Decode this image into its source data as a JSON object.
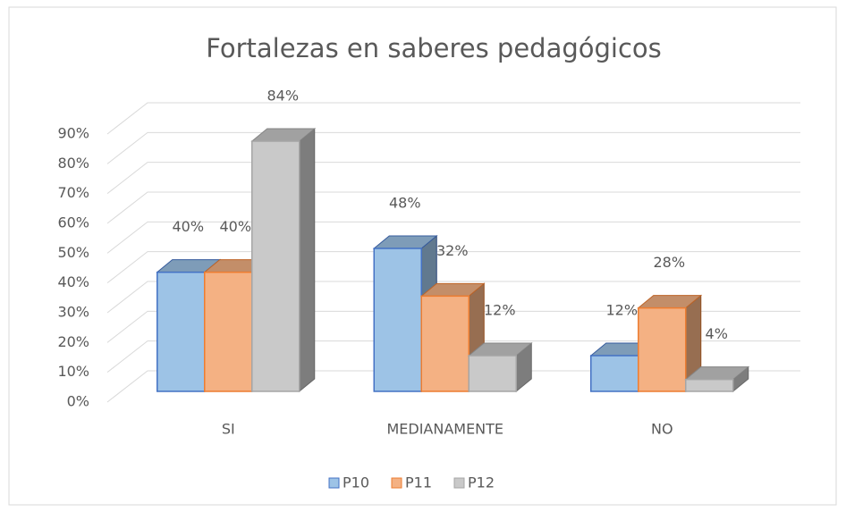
{
  "chart_data": {
    "type": "bar3d",
    "title": "Fortalezas en saberes pedagógicos",
    "categories": [
      "SI",
      "MEDIANAMENTE",
      "NO"
    ],
    "series": [
      {
        "name": "P10",
        "color": "#9dc3e6",
        "border": "#4472c4",
        "values": [
          40,
          48,
          12
        ],
        "value_labels": [
          "40%",
          "48%",
          "12%"
        ]
      },
      {
        "name": "P11",
        "color": "#f4b183",
        "border": "#ed7d31",
        "values": [
          40,
          32,
          28
        ],
        "value_labels": [
          "40%",
          "32%",
          "28%"
        ]
      },
      {
        "name": "P12",
        "color": "#c9c9c9",
        "border": "#a5a5a5",
        "values": [
          84,
          12,
          4
        ],
        "value_labels": [
          "84%",
          "12%",
          "4%"
        ]
      }
    ],
    "ylim": [
      0,
      90
    ],
    "yticks": [
      {
        "value": 0,
        "label": "0%"
      },
      {
        "value": 10,
        "label": "10%"
      },
      {
        "value": 20,
        "label": "20%"
      },
      {
        "value": 30,
        "label": "30%"
      },
      {
        "value": 40,
        "label": "40%"
      },
      {
        "value": 50,
        "label": "50%"
      },
      {
        "value": 60,
        "label": "60%"
      },
      {
        "value": 70,
        "label": "70%"
      },
      {
        "value": 80,
        "label": "80%"
      },
      {
        "value": 90,
        "label": "90%"
      }
    ],
    "grid": true,
    "legend": "bottom"
  }
}
